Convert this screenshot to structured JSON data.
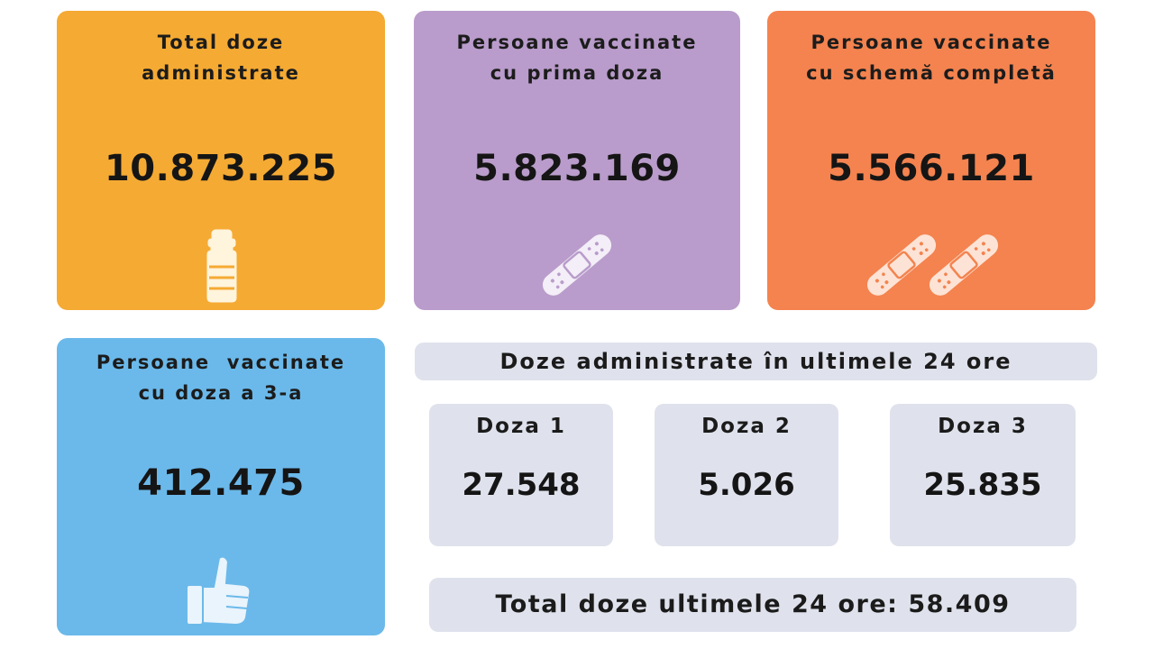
{
  "cards": {
    "total": {
      "title_line1": "Total doze",
      "title_line2": "administrate",
      "value": "10.873.225",
      "icon": "vaccine-vial-icon",
      "color": "#f5aa33"
    },
    "first_dose": {
      "title_line1": "Persoane vaccinate",
      "title_line2": "cu prima doza",
      "value": "5.823.169",
      "icon": "bandage-icon",
      "color": "#b99ccb"
    },
    "complete": {
      "title_line1": "Persoane vaccinate",
      "title_line2": "cu schemă completă",
      "value": "5.566.121",
      "icon": "two-bandages-icon",
      "color": "#f4834f"
    },
    "third_dose": {
      "title_line1": "Persoane  vaccinate",
      "title_line2": "cu doza a 3-a",
      "value": "412.475",
      "icon": "thumbs-up-icon",
      "color": "#6bb9ea"
    }
  },
  "last24": {
    "header": "Doze administrate în ultimele 24 ore",
    "doses": [
      {
        "label": "Doza 1",
        "value": "27.548"
      },
      {
        "label": "Doza 2",
        "value": "5.026"
      },
      {
        "label": "Doza 3",
        "value": "25.835"
      }
    ],
    "total_text": "Total doze ultimele 24 ore: 58.409",
    "panel_color": "#dfe2ec"
  }
}
